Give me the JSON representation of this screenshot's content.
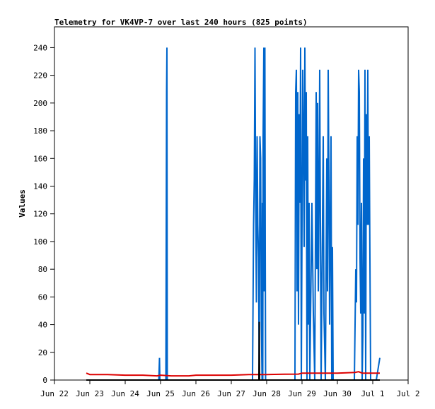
{
  "chart_data": {
    "type": "line",
    "title": "Telemetry for VK4VP-7 over last 240 hours (825 points)",
    "xlabel": "",
    "ylabel": "Values",
    "x_ticks": [
      "Jun 22",
      "Jun 23",
      "Jun 24",
      "Jun 25",
      "Jun 26",
      "Jun 27",
      "Jun 28",
      "Jun 29",
      "Jun 30",
      "Jul 1",
      "Jul 2"
    ],
    "x_unit": "days",
    "xlim": [
      0,
      10
    ],
    "y_ticks": [
      0,
      20,
      40,
      60,
      80,
      100,
      120,
      140,
      160,
      180,
      200,
      220,
      240
    ],
    "ylim": [
      0,
      255
    ],
    "grid": false,
    "legend": "none",
    "series": [
      {
        "color": "#0066cc",
        "points": [
          [
            0.9,
            0
          ],
          [
            2.9,
            0
          ],
          [
            2.95,
            0
          ],
          [
            2.97,
            16
          ],
          [
            2.98,
            0
          ],
          [
            3.15,
            0
          ],
          [
            3.17,
            208
          ],
          [
            3.18,
            240
          ],
          [
            3.19,
            0
          ],
          [
            5.6,
            0
          ],
          [
            5.63,
            112
          ],
          [
            5.65,
            145
          ],
          [
            5.67,
            240
          ],
          [
            5.69,
            128
          ],
          [
            5.71,
            56
          ],
          [
            5.73,
            176
          ],
          [
            5.75,
            112
          ],
          [
            5.77,
            88
          ],
          [
            5.79,
            0
          ],
          [
            5.81,
            176
          ],
          [
            5.83,
            160
          ],
          [
            5.85,
            40
          ],
          [
            5.87,
            0
          ],
          [
            5.88,
            128
          ],
          [
            5.89,
            0
          ],
          [
            5.9,
            176
          ],
          [
            5.91,
            208
          ],
          [
            5.92,
            240
          ],
          [
            5.93,
            64
          ],
          [
            5.94,
            208
          ],
          [
            5.95,
            240
          ],
          [
            5.96,
            96
          ],
          [
            5.97,
            0
          ],
          [
            6.0,
            0
          ],
          [
            6.8,
            0
          ],
          [
            6.82,
            208
          ],
          [
            6.84,
            224
          ],
          [
            6.86,
            64
          ],
          [
            6.88,
            208
          ],
          [
            6.9,
            40
          ],
          [
            6.92,
            192
          ],
          [
            6.94,
            128
          ],
          [
            6.96,
            240
          ],
          [
            6.98,
            0
          ],
          [
            7.02,
            224
          ],
          [
            7.04,
            176
          ],
          [
            7.06,
            96
          ],
          [
            7.08,
            240
          ],
          [
            7.1,
            144
          ],
          [
            7.12,
            208
          ],
          [
            7.14,
            0
          ],
          [
            7.16,
            176
          ],
          [
            7.18,
            40
          ],
          [
            7.2,
            128
          ],
          [
            7.22,
            0
          ],
          [
            7.28,
            128
          ],
          [
            7.32,
            48
          ],
          [
            7.36,
            0
          ],
          [
            7.4,
            208
          ],
          [
            7.42,
            80
          ],
          [
            7.44,
            200
          ],
          [
            7.46,
            64
          ],
          [
            7.48,
            128
          ],
          [
            7.5,
            224
          ],
          [
            7.52,
            112
          ],
          [
            7.54,
            0
          ],
          [
            7.6,
            176
          ],
          [
            7.62,
            48
          ],
          [
            7.66,
            0
          ],
          [
            7.7,
            160
          ],
          [
            7.72,
            64
          ],
          [
            7.74,
            224
          ],
          [
            7.76,
            144
          ],
          [
            7.78,
            40
          ],
          [
            7.8,
            112
          ],
          [
            7.82,
            176
          ],
          [
            7.84,
            0
          ],
          [
            7.86,
            96
          ],
          [
            7.88,
            0
          ],
          [
            7.9,
            0
          ],
          [
            8.48,
            0
          ],
          [
            8.52,
            80
          ],
          [
            8.54,
            56
          ],
          [
            8.56,
            176
          ],
          [
            8.58,
            112
          ],
          [
            8.6,
            224
          ],
          [
            8.62,
            208
          ],
          [
            8.64,
            88
          ],
          [
            8.66,
            48
          ],
          [
            8.68,
            128
          ],
          [
            8.7,
            0
          ],
          [
            8.72,
            32
          ],
          [
            8.74,
            160
          ],
          [
            8.76,
            48
          ],
          [
            8.78,
            224
          ],
          [
            8.8,
            0
          ],
          [
            8.82,
            192
          ],
          [
            8.84,
            112
          ],
          [
            8.86,
            224
          ],
          [
            8.88,
            112
          ],
          [
            8.9,
            176
          ],
          [
            8.92,
            88
          ],
          [
            8.94,
            0
          ],
          [
            9.1,
            0
          ],
          [
            9.2,
            16
          ]
        ]
      },
      {
        "color": "#dd0000",
        "points": [
          [
            0.9,
            5
          ],
          [
            1.0,
            4
          ],
          [
            1.5,
            4
          ],
          [
            2.0,
            3.5
          ],
          [
            2.5,
            3.5
          ],
          [
            2.9,
            3
          ],
          [
            3.0,
            3.5
          ],
          [
            3.3,
            3
          ],
          [
            3.5,
            3
          ],
          [
            3.8,
            3
          ],
          [
            4.0,
            3.5
          ],
          [
            4.5,
            3.5
          ],
          [
            5.0,
            3.5
          ],
          [
            5.5,
            4
          ],
          [
            6.0,
            4
          ],
          [
            6.5,
            4.2
          ],
          [
            6.9,
            4.3
          ],
          [
            7.0,
            5
          ],
          [
            7.5,
            5
          ],
          [
            8.0,
            5
          ],
          [
            8.5,
            5.5
          ],
          [
            8.6,
            6
          ],
          [
            8.7,
            5
          ],
          [
            9.0,
            5
          ],
          [
            9.2,
            5
          ]
        ]
      },
      {
        "color": "#000000",
        "points": [
          [
            0.9,
            0
          ],
          [
            5.78,
            0
          ],
          [
            5.79,
            42
          ],
          [
            5.8,
            0
          ],
          [
            9.2,
            0
          ]
        ]
      }
    ]
  }
}
